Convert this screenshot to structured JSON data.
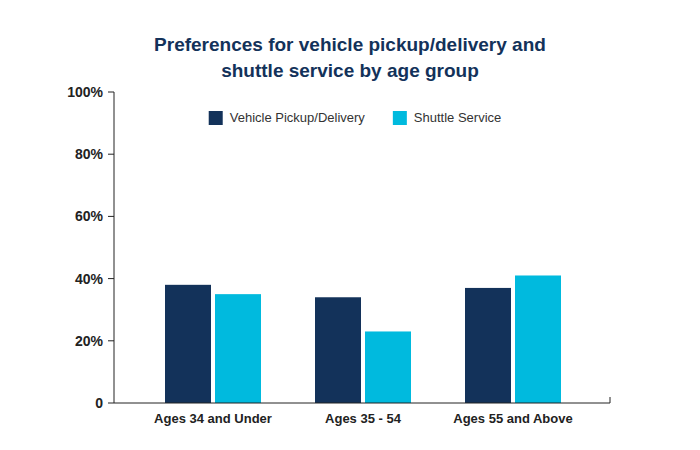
{
  "chart_data": {
    "type": "bar",
    "title": "Preferences for vehicle pickup/delivery and shuttle service by age group",
    "categories": [
      "Ages 34 and Under",
      "Ages 35 - 54",
      "Ages 55 and Above"
    ],
    "series": [
      {
        "name": "Vehicle Pickup/Delivery",
        "color": "#13325a",
        "values": [
          38,
          34,
          37
        ]
      },
      {
        "name": "Shuttle Service",
        "color": "#00bade",
        "values": [
          35,
          23,
          41
        ]
      }
    ],
    "ylim": [
      0,
      100
    ],
    "yticks": [
      0,
      {
        "value": 20,
        "label": "20%"
      },
      {
        "value": 40,
        "label": "40%"
      },
      {
        "value": 60,
        "label": "60%"
      },
      {
        "value": 80,
        "label": "80%"
      },
      {
        "value": 100,
        "label": "100%"
      }
    ],
    "grid": false,
    "legend": "top"
  }
}
